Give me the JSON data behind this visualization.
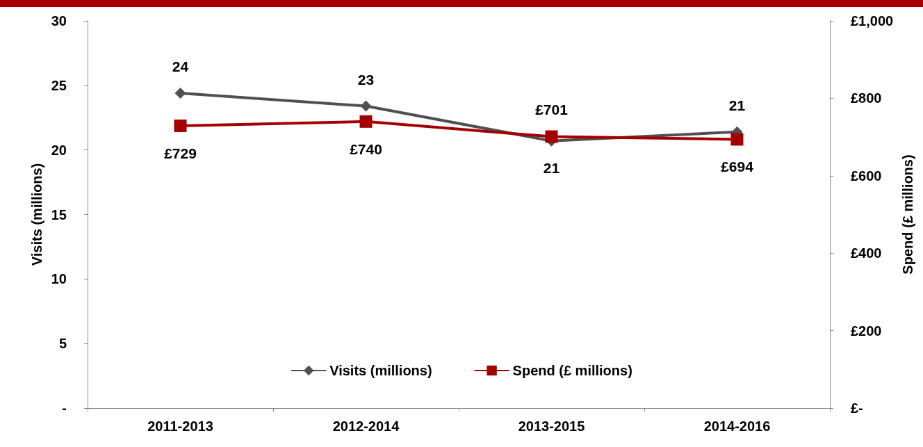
{
  "chart_data": {
    "type": "line",
    "ylabel": "Visits (millions)",
    "y2label": "Spend (£ millions)",
    "categories": [
      "2011-2013",
      "2012-2014",
      "2013-2015",
      "2014-2016"
    ],
    "series": [
      {
        "name": "Visits (millions)",
        "color": "#505050",
        "marker": "diamond",
        "values": [
          24.4,
          23.4,
          20.7,
          21.4
        ],
        "value_labels": [
          "24",
          "23",
          "21",
          "21"
        ]
      },
      {
        "name": "Spend (£ millions)",
        "color": "#a50000",
        "marker": "square",
        "axis": "y2",
        "values": [
          729,
          740,
          701,
          694
        ],
        "value_labels": [
          "£729",
          "£740",
          "£701",
          "£694"
        ]
      }
    ],
    "ylim": [
      0,
      30
    ],
    "yticks": [
      {
        "value": 0,
        "label": "-"
      },
      5,
      10,
      15,
      20,
      25,
      30
    ],
    "y2lim": [
      0,
      1000
    ],
    "y2ticks": [
      {
        "value": 0,
        "label": "£-"
      },
      {
        "value": 200,
        "label": "£200"
      },
      {
        "value": 400,
        "label": "£400"
      },
      {
        "value": 600,
        "label": "£600"
      },
      {
        "value": 800,
        "label": "£800"
      },
      {
        "value": 1000,
        "label": "£1,000"
      }
    ],
    "grid": false,
    "legend": "bottom",
    "line_style": "solid"
  }
}
